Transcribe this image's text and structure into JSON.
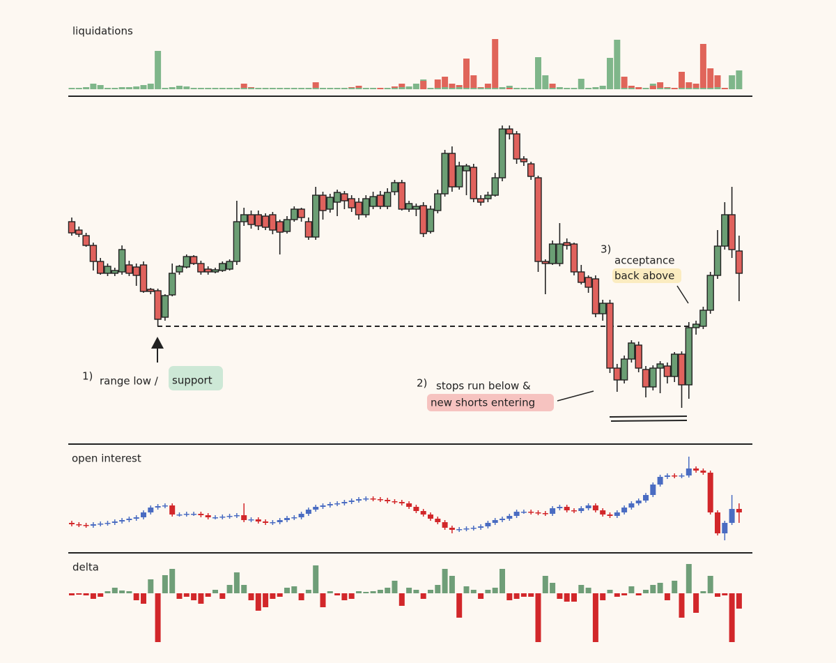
{
  "chart_data": [
    {
      "type": "bar",
      "title": "liquidations",
      "ylim": [
        0,
        75
      ],
      "series": [
        {
          "color": "#7fb68a",
          "values": [
            2,
            2,
            3,
            8,
            6,
            2,
            2,
            3,
            3,
            4,
            6,
            8,
            55,
            2,
            3,
            5,
            4,
            2,
            2,
            2,
            2,
            2,
            2,
            2,
            2,
            2,
            2,
            2,
            2,
            2,
            2,
            2,
            2,
            2,
            2,
            2,
            2,
            2,
            2,
            2,
            2,
            2,
            2,
            2,
            2,
            2,
            3,
            4,
            8,
            14,
            2,
            2,
            3,
            2,
            3,
            2,
            2,
            2,
            2,
            2,
            3,
            5,
            2,
            2,
            2,
            46,
            20,
            2,
            3,
            2,
            2,
            15,
            2,
            3,
            5,
            45,
            71,
            2,
            2,
            3,
            2,
            8,
            2,
            2,
            2,
            2,
            2,
            2,
            2,
            2,
            3,
            2,
            20,
            27
          ]
        },
        {
          "color": "#e0655a",
          "values": [
            0,
            0,
            0,
            0,
            0,
            0,
            0,
            0,
            0,
            0,
            0,
            0,
            0,
            0,
            0,
            0,
            0,
            0,
            0,
            0,
            0,
            0,
            0,
            0,
            8,
            3,
            0,
            0,
            0,
            0,
            0,
            0,
            0,
            0,
            10,
            0,
            0,
            0,
            0,
            3,
            5,
            0,
            0,
            2,
            0,
            4,
            8,
            0,
            0,
            12,
            0,
            14,
            18,
            8,
            6,
            44,
            20,
            3,
            8,
            72,
            0,
            2,
            0,
            0,
            0,
            0,
            0,
            8,
            0,
            0,
            0,
            0,
            0,
            0,
            0,
            0,
            0,
            18,
            5,
            3,
            0,
            5,
            10,
            3,
            2,
            25,
            10,
            8,
            65,
            30,
            20,
            2,
            0,
            0
          ]
        }
      ]
    },
    {
      "type": "candlestick",
      "ylim": [
        0,
        450
      ],
      "up_color": "#6b9e74",
      "down_color": "#e0625d",
      "reference_line": 152,
      "open": [
        302,
        290,
        282,
        268,
        245,
        228,
        228,
        230,
        240,
        237,
        240,
        205,
        203,
        165,
        197,
        230,
        237,
        252,
        242,
        234,
        230,
        232,
        234,
        245,
        302,
        312,
        312,
        310,
        312,
        302,
        288,
        305,
        320,
        302,
        280,
        340,
        320,
        330,
        342,
        335,
        330,
        312,
        324,
        340,
        324,
        345,
        358,
        320,
        320,
        325,
        288,
        318,
        342,
        400,
        352,
        375,
        380,
        335,
        335,
        340,
        365,
        435,
        428,
        392,
        385,
        365,
        245,
        242,
        242,
        272,
        270,
        230,
        222,
        220,
        170,
        185,
        92,
        75,
        105,
        125,
        90,
        65,
        92,
        95,
        80,
        112,
        68,
        150,
        152,
        175,
        225,
        267,
        312,
        260
      ],
      "high": [
        308,
        295,
        286,
        272,
        250,
        242,
        236,
        268,
        246,
        242,
        245,
        207,
        206,
        198,
        242,
        240,
        255,
        254,
        246,
        238,
        236,
        245,
        248,
        332,
        322,
        318,
        318,
        314,
        316,
        305,
        310,
        324,
        322,
        308,
        352,
        345,
        342,
        348,
        346,
        340,
        336,
        340,
        345,
        346,
        350,
        362,
        362,
        332,
        328,
        330,
        325,
        348,
        405,
        410,
        388,
        385,
        385,
        340,
        345,
        372,
        440,
        440,
        432,
        396,
        388,
        368,
        248,
        275,
        300,
        278,
        272,
        240,
        225,
        225,
        190,
        190,
        98,
        110,
        132,
        130,
        95,
        96,
        102,
        100,
        115,
        116,
        158,
        160,
        180,
        230,
        290,
        330,
        352,
        282
      ],
      "low": [
        282,
        280,
        266,
        232,
        226,
        224,
        224,
        226,
        224,
        210,
        200,
        198,
        152,
        160,
        195,
        226,
        235,
        240,
        226,
        226,
        228,
        230,
        232,
        240,
        296,
        292,
        290,
        290,
        284,
        255,
        285,
        302,
        302,
        276,
        276,
        305,
        315,
        310,
        320,
        316,
        305,
        308,
        320,
        320,
        320,
        340,
        318,
        316,
        310,
        280,
        285,
        314,
        338,
        345,
        348,
        340,
        330,
        325,
        330,
        338,
        360,
        420,
        385,
        382,
        362,
        230,
        198,
        240,
        238,
        262,
        225,
        212,
        200,
        165,
        160,
        85,
        58,
        70,
        100,
        86,
        50,
        60,
        56,
        70,
        72,
        35,
        48,
        140,
        148,
        170,
        220,
        262,
        250,
        188
      ],
      "close": [
        286,
        284,
        268,
        245,
        228,
        238,
        232,
        262,
        228,
        225,
        202,
        202,
        162,
        196,
        228,
        238,
        252,
        242,
        230,
        230,
        233,
        242,
        245,
        302,
        312,
        298,
        296,
        294,
        290,
        287,
        305,
        320,
        308,
        280,
        340,
        318,
        337,
        344,
        332,
        322,
        312,
        335,
        338,
        324,
        344,
        358,
        320,
        328,
        324,
        285,
        320,
        342,
        400,
        352,
        382,
        382,
        335,
        330,
        340,
        365,
        435,
        428,
        392,
        388,
        367,
        245,
        242,
        270,
        270,
        268,
        230,
        215,
        208,
        170,
        185,
        92,
        75,
        105,
        128,
        92,
        65,
        92,
        98,
        80,
        112,
        68,
        150,
        155,
        175,
        225,
        267,
        312,
        262,
        228
      ],
      "annotations": [
        {
          "marker": "1)",
          "lines": [
            "range low /",
            "support"
          ]
        },
        {
          "marker": "2)",
          "lines": [
            "stops run below &",
            "new shorts entering"
          ]
        },
        {
          "marker": "3)",
          "lines": [
            "acceptance",
            "back above"
          ]
        }
      ]
    },
    {
      "type": "candlestick",
      "title": "open interest",
      "ylim": [
        0,
        140
      ],
      "up_color": "#4a6cc2",
      "down_color": "#d2272a",
      "open": [
        40,
        38,
        37,
        36,
        38,
        39,
        40,
        42,
        44,
        46,
        48,
        55,
        62,
        64,
        65,
        52,
        52,
        53,
        53,
        51,
        48,
        48,
        49,
        50,
        51,
        44,
        45,
        42,
        40,
        41,
        44,
        47,
        48,
        53,
        59,
        63,
        65,
        67,
        68,
        70,
        72,
        74,
        75,
        74,
        73,
        71,
        70,
        68,
        63,
        57,
        52,
        46,
        41,
        33,
        30,
        31,
        32,
        33,
        35,
        40,
        44,
        46,
        50,
        56,
        56,
        55,
        54,
        53,
        61,
        63,
        58,
        57,
        61,
        65,
        58,
        52,
        50,
        55,
        62,
        68,
        72,
        80,
        95,
        106,
        108,
        107,
        108,
        118,
        115,
        112,
        55,
        25,
        40,
        60
      ],
      "high": [
        43,
        41,
        40,
        41,
        42,
        43,
        45,
        47,
        49,
        51,
        58,
        65,
        67,
        68,
        68,
        55,
        56,
        56,
        56,
        54,
        51,
        52,
        53,
        54,
        68,
        48,
        48,
        45,
        44,
        47,
        50,
        51,
        56,
        62,
        66,
        68,
        70,
        71,
        73,
        75,
        77,
        78,
        78,
        77,
        76,
        74,
        73,
        71,
        66,
        60,
        55,
        49,
        44,
        36,
        34,
        35,
        36,
        38,
        43,
        47,
        49,
        53,
        59,
        59,
        59,
        58,
        57,
        64,
        66,
        66,
        61,
        64,
        68,
        68,
        61,
        55,
        58,
        65,
        71,
        75,
        83,
        98,
        109,
        111,
        111,
        111,
        135,
        121,
        118,
        115,
        58,
        43,
        80,
        68
      ],
      "low": [
        35,
        34,
        33,
        33,
        35,
        36,
        37,
        39,
        41,
        43,
        45,
        52,
        59,
        61,
        49,
        49,
        49,
        50,
        48,
        45,
        45,
        45,
        46,
        47,
        41,
        41,
        39,
        37,
        37,
        38,
        41,
        44,
        45,
        50,
        56,
        60,
        62,
        64,
        65,
        67,
        69,
        71,
        71,
        70,
        68,
        67,
        65,
        60,
        54,
        49,
        43,
        38,
        30,
        25,
        27,
        28,
        29,
        30,
        32,
        37,
        41,
        43,
        47,
        53,
        52,
        51,
        50,
        50,
        58,
        55,
        54,
        54,
        58,
        55,
        49,
        47,
        47,
        52,
        59,
        65,
        69,
        77,
        92,
        103,
        104,
        104,
        105,
        112,
        109,
        52,
        22,
        15,
        37,
        40
      ],
      "close": [
        38,
        37,
        36,
        38,
        39,
        40,
        42,
        44,
        46,
        48,
        55,
        62,
        64,
        65,
        52,
        52,
        53,
        53,
        51,
        48,
        48,
        49,
        50,
        51,
        44,
        45,
        42,
        40,
        41,
        44,
        47,
        48,
        53,
        59,
        63,
        65,
        67,
        68,
        70,
        72,
        74,
        75,
        74,
        73,
        71,
        70,
        68,
        63,
        57,
        52,
        46,
        41,
        33,
        30,
        31,
        32,
        33,
        35,
        40,
        44,
        46,
        50,
        56,
        56,
        55,
        54,
        53,
        61,
        63,
        58,
        57,
        61,
        65,
        58,
        52,
        50,
        55,
        62,
        68,
        72,
        80,
        95,
        106,
        108,
        107,
        108,
        118,
        115,
        112,
        55,
        25,
        40,
        60,
        55
      ]
    },
    {
      "type": "bar",
      "title": "delta",
      "ylim": [
        -72,
        44
      ],
      "up_color": "#6f9e78",
      "down_color": "#d2272a",
      "values": [
        -3,
        -2,
        -3,
        -8,
        -5,
        3,
        8,
        4,
        3,
        -10,
        -15,
        20,
        -70,
        26,
        35,
        -8,
        -5,
        -10,
        -15,
        -5,
        5,
        -8,
        12,
        30,
        12,
        -10,
        -25,
        -20,
        -8,
        -5,
        8,
        10,
        -10,
        5,
        40,
        -20,
        3,
        -3,
        -10,
        -8,
        3,
        2,
        3,
        5,
        8,
        18,
        -18,
        8,
        5,
        -8,
        5,
        12,
        35,
        25,
        -35,
        10,
        5,
        -8,
        5,
        8,
        35,
        -10,
        -8,
        -5,
        -5,
        -70,
        25,
        15,
        -8,
        -12,
        -12,
        12,
        8,
        -70,
        -10,
        5,
        -5,
        -3,
        10,
        -3,
        5,
        12,
        15,
        -10,
        18,
        -35,
        42,
        -28,
        3,
        25,
        -5,
        -3,
        -70,
        -22
      ]
    }
  ]
}
